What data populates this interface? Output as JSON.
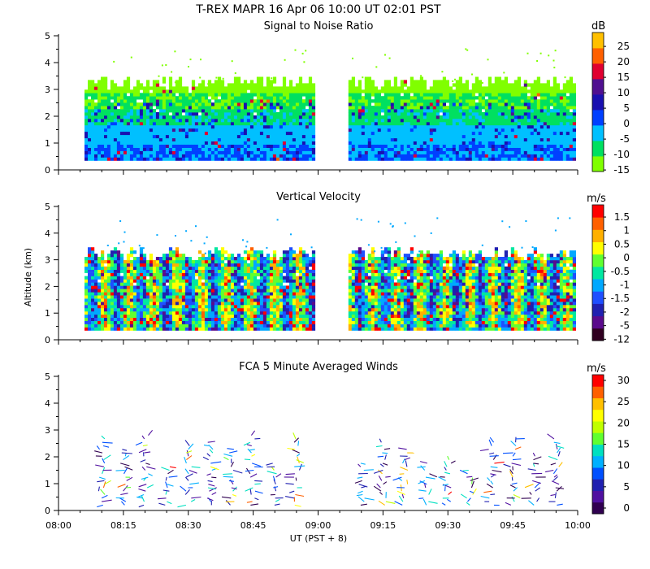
{
  "header": {
    "title": "T-REX  MAPR 16 Apr 06  10:00 UT  02:01  PST"
  },
  "colors": {
    "snr": [
      "#80ff00",
      "#00e060",
      "#00c0ff",
      "#0040ff",
      "#1a10b0",
      "#501090",
      "#e00030",
      "#ff6000",
      "#ffc000"
    ],
    "w": [
      "#300020",
      "#5a0a8c",
      "#2020b0",
      "#1f4fff",
      "#00a8ff",
      "#00e8a0",
      "#60ff30",
      "#ffff00",
      "#ffb000",
      "#ff6000",
      "#ff0000"
    ],
    "wind": [
      "#300050",
      "#5010a0",
      "#2020b0",
      "#0050ff",
      "#00b0ff",
      "#00e0c0",
      "#60ff30",
      "#c0ff00",
      "#ffff00",
      "#ffc000",
      "#ff6000",
      "#ff0000"
    ]
  },
  "chart_data": [
    {
      "type": "heatmap",
      "title": "Signal to Noise Ratio",
      "xlabel": "UT  (PST + 8)",
      "ylabel": "",
      "x_range": [
        "08:00",
        "10:00"
      ],
      "ylim": [
        0,
        5
      ],
      "yticks": [
        "0",
        "1",
        "2",
        "3",
        "4",
        "5"
      ],
      "data_gap": [
        "08:59",
        "09:07"
      ],
      "echo_top_km": 3.2,
      "colorbar": {
        "unit": "dB",
        "labels": [
          "25",
          "20",
          "15",
          "10",
          "5",
          "0",
          "-5",
          "-10",
          "-15"
        ]
      }
    },
    {
      "type": "heatmap",
      "title": "Vertical Velocity",
      "xlabel": "UT  (PST + 8)",
      "ylabel": "Altitude (km)",
      "x_range": [
        "08:00",
        "10:00"
      ],
      "ylim": [
        0,
        5
      ],
      "yticks": [
        "0",
        "1",
        "2",
        "3",
        "4",
        "5"
      ],
      "data_gap": [
        "08:59",
        "09:07"
      ],
      "echo_top_km": 3.2,
      "colorbar": {
        "unit": "m/s",
        "labels": [
          "1.5",
          "1",
          "0.5",
          "0",
          "-0.5",
          "-1",
          "-1.5",
          "-2",
          "-5",
          "-12"
        ]
      }
    },
    {
      "type": "scatter",
      "title": "FCA 5 Minute Averaged Winds",
      "xlabel": "UT  (PST + 8)",
      "ylabel": "",
      "x_range": [
        "08:00",
        "10:00"
      ],
      "xticks": [
        "08:00",
        "08:15",
        "08:30",
        "08:45",
        "09:00",
        "09:15",
        "09:30",
        "09:45",
        "10:00"
      ],
      "ylim": [
        0,
        5
      ],
      "yticks": [
        "0",
        "1",
        "2",
        "3",
        "4",
        "5"
      ],
      "wind_profile_times": [
        "08:10",
        "08:15",
        "08:20",
        "08:25",
        "08:30",
        "08:35",
        "08:40",
        "08:45",
        "08:50",
        "08:55",
        "09:10",
        "09:15",
        "09:20",
        "09:25",
        "09:30",
        "09:35",
        "09:40",
        "09:45",
        "09:50",
        "09:55"
      ],
      "colorbar": {
        "unit": "m/s",
        "labels": [
          "30",
          "25",
          "20",
          "15",
          "10",
          "5",
          "0"
        ]
      }
    }
  ]
}
